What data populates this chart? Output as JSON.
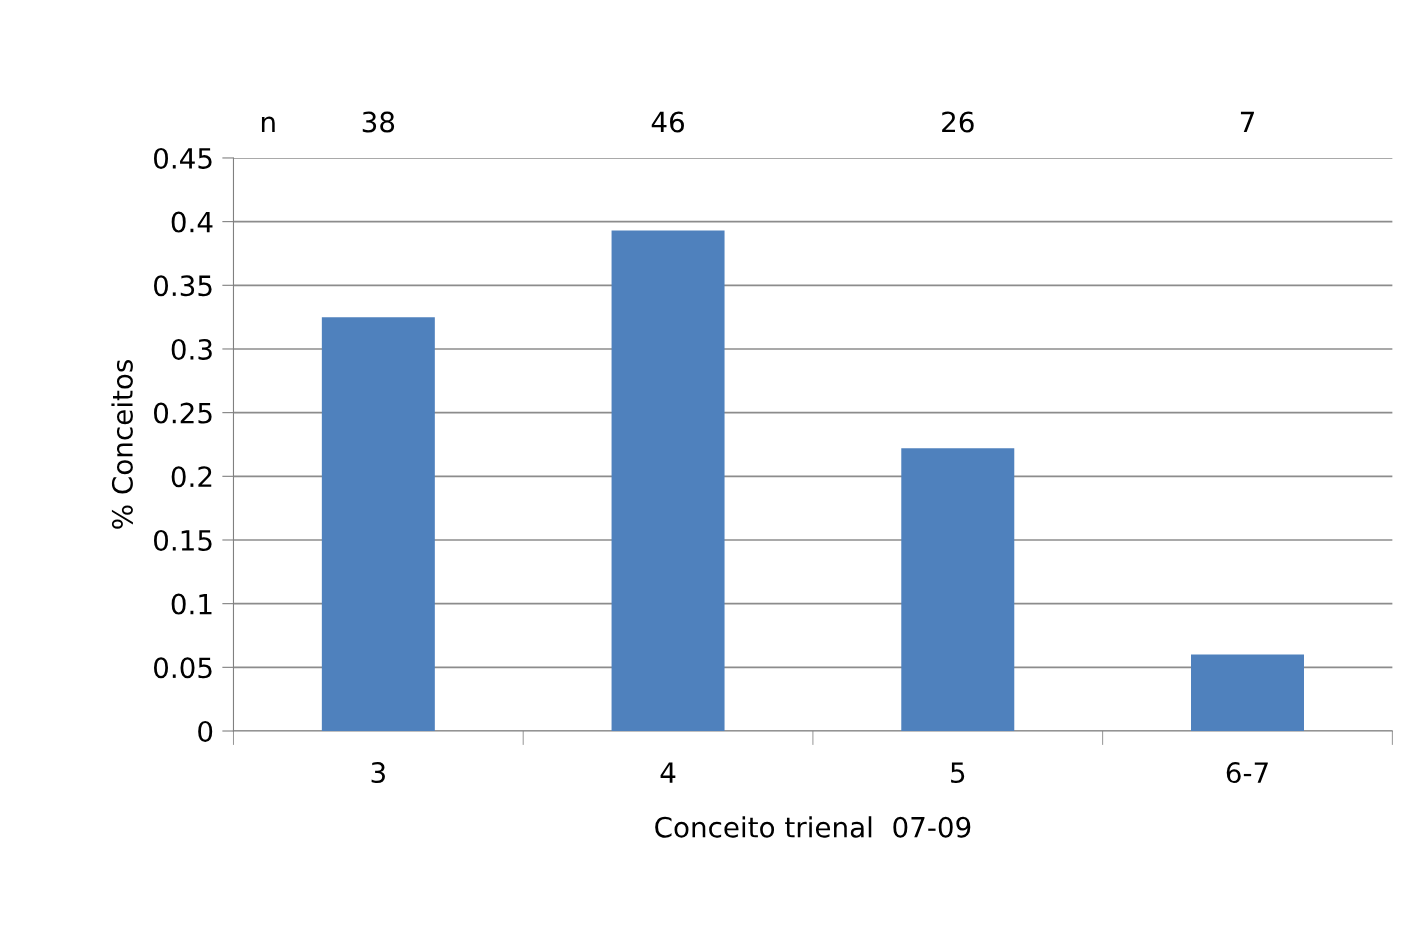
{
  "chart_data": {
    "type": "bar",
    "xlabel": "Conceito trienal  07-09",
    "ylabel": "% Conceitos",
    "categories": [
      "3",
      "4",
      "5",
      "6-7"
    ],
    "values": [
      0.325,
      0.393,
      0.222,
      0.06
    ],
    "color": "#4f81bd",
    "ylim": [
      0,
      0.45
    ],
    "yticks": [
      0,
      0.05,
      0.1,
      0.15,
      0.2,
      0.25,
      0.3,
      0.35,
      0.4,
      0.45
    ],
    "grid": "y",
    "annotations": [
      "n",
      "38",
      "46",
      "26",
      "7"
    ]
  }
}
